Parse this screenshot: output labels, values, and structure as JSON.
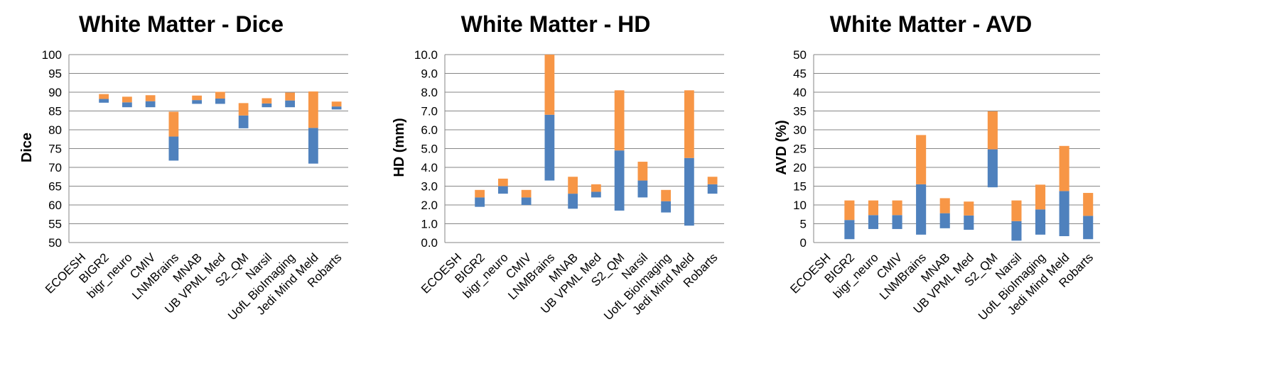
{
  "chart_data": [
    {
      "type": "bar",
      "stacked": true,
      "title": "White Matter - Dice",
      "ylabel": "Dice",
      "ylim": [
        50,
        100
      ],
      "yticks": [
        "50",
        "55",
        "60",
        "65",
        "70",
        "75",
        "80",
        "85",
        "90",
        "95",
        "100"
      ],
      "grid": true,
      "categories": [
        "ECOESH",
        "BIGR2",
        "bigr_neuro",
        "CMIV",
        "LNMBrains",
        "MNAB",
        "UB VPML Med",
        "S2_QM",
        "Narsil",
        "UofL BioImaging",
        "Jedi Mind Meld",
        "Robarts"
      ],
      "lower": [
        null,
        87.2,
        86.0,
        86.0,
        71.8,
        86.9,
        86.9,
        80.4,
        86.0,
        86.0,
        71.0,
        85.4
      ],
      "middle": [
        null,
        88.2,
        87.3,
        87.6,
        78.2,
        87.9,
        88.3,
        83.8,
        87.0,
        87.8,
        80.5,
        86.2
      ],
      "upper": [
        null,
        89.5,
        88.8,
        89.2,
        84.8,
        89.1,
        90.1,
        87.1,
        88.4,
        89.9,
        90.2,
        87.5
      ],
      "colors": {
        "lower_segment": "#4f81bd",
        "upper_segment": "#f79646"
      }
    },
    {
      "type": "bar",
      "stacked": true,
      "title": "White Matter - HD",
      "ylabel": "HD (mm)",
      "ylim": [
        0,
        10
      ],
      "yticks": [
        "0.0",
        "1.0",
        "2.0",
        "3.0",
        "4.0",
        "5.0",
        "6.0",
        "7.0",
        "8.0",
        "9.0",
        "10.0"
      ],
      "grid": true,
      "categories": [
        "ECOESH",
        "BIGR2",
        "bigr_neuro",
        "CMIV",
        "LNMBrains",
        "MNAB",
        "UB VPML Med",
        "S2_QM",
        "Narsil",
        "UofL BioImaging",
        "Jedi Mind Meld",
        "Robarts"
      ],
      "lower": [
        null,
        1.9,
        2.6,
        2.0,
        3.3,
        1.8,
        2.4,
        1.7,
        2.4,
        1.6,
        0.9,
        2.6
      ],
      "middle": [
        null,
        2.4,
        3.0,
        2.4,
        6.8,
        2.6,
        2.7,
        4.9,
        3.3,
        2.2,
        4.5,
        3.1
      ],
      "upper": [
        null,
        2.8,
        3.4,
        2.8,
        10.0,
        3.5,
        3.1,
        8.1,
        4.3,
        2.8,
        8.1,
        3.5
      ],
      "colors": {
        "lower_segment": "#4f81bd",
        "upper_segment": "#f79646"
      }
    },
    {
      "type": "bar",
      "stacked": true,
      "title": "White Matter - AVD",
      "ylabel": "AVD (%)",
      "ylim": [
        0,
        50
      ],
      "yticks": [
        "0",
        "5",
        "10",
        "15",
        "20",
        "25",
        "30",
        "35",
        "40",
        "45",
        "50"
      ],
      "grid": true,
      "categories": [
        "ECOESH",
        "BIGR2",
        "bigr_neuro",
        "CMIV",
        "LNMBrains",
        "MNAB",
        "UB VPML Med",
        "S2_QM",
        "Narsil",
        "UofL BioImaging",
        "Jedi Mind Meld",
        "Robarts"
      ],
      "lower": [
        null,
        0.9,
        3.6,
        3.6,
        2.1,
        3.8,
        3.4,
        14.7,
        0.5,
        2.1,
        1.7,
        0.9
      ],
      "middle": [
        null,
        6.0,
        7.3,
        7.3,
        15.5,
        7.8,
        7.2,
        24.8,
        5.7,
        8.8,
        13.7,
        7.1
      ],
      "upper": [
        null,
        11.2,
        11.2,
        11.2,
        28.6,
        11.8,
        10.9,
        34.9,
        11.2,
        15.4,
        25.7,
        13.2
      ],
      "colors": {
        "lower_segment": "#4f81bd",
        "upper_segment": "#f79646"
      }
    }
  ]
}
